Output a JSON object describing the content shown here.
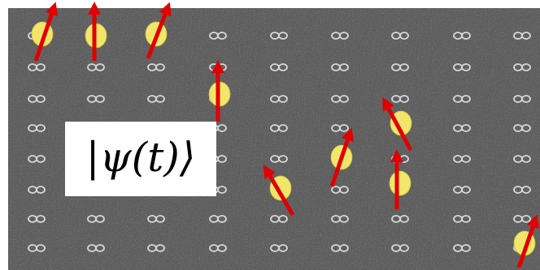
{
  "label": "|ψ(t)⟩"
}
